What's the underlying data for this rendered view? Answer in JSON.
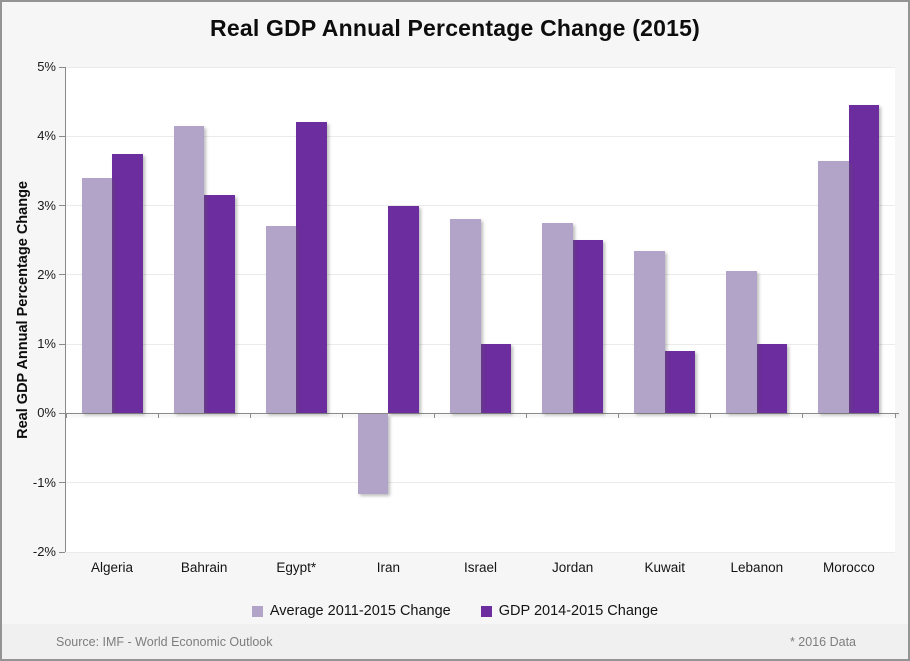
{
  "title": "Real GDP Annual Percentage Change (2015)",
  "footer": {
    "source": "Source: IMF - World Economic Outlook",
    "note": "* 2016 Data"
  },
  "colors": {
    "series_light": "#B2A4C9",
    "series_dark": "#6C2D9E",
    "grid": "#EBEBEB",
    "axis": "#8A8A8A",
    "plot_bg": "#FFFFFF",
    "canvas_bg": "#F6F6F6",
    "footer_bg": "#F0F0F0",
    "border": "#949494",
    "footer_text": "#7D7D7D"
  },
  "chart_data": {
    "type": "bar",
    "title": "Real GDP Annual Percentage Change (2015)",
    "xlabel": "",
    "ylabel": "Real GDP Annual Percentage Change",
    "ylim": [
      -2,
      5
    ],
    "y_ticks": [
      "5%",
      "4%",
      "3%",
      "2%",
      "1%",
      "0%",
      "-1%",
      "-2%"
    ],
    "grid": true,
    "legend_position": "bottom",
    "categories": [
      "Algeria",
      "Bahrain",
      "Egypt*",
      "Iran",
      "Israel",
      "Jordan",
      "Kuwait",
      "Lebanon",
      "Morocco"
    ],
    "series": [
      {
        "name": "Average 2011-2015 Change",
        "color": "#B2A4C9",
        "values": [
          3.4,
          4.15,
          2.7,
          -1.15,
          2.8,
          2.75,
          2.35,
          2.05,
          3.65
        ]
      },
      {
        "name": "GDP 2014-2015 Change",
        "color": "#6C2D9E",
        "values": [
          3.75,
          3.15,
          4.2,
          3.0,
          1.0,
          2.5,
          0.9,
          1.0,
          4.45
        ]
      }
    ]
  }
}
